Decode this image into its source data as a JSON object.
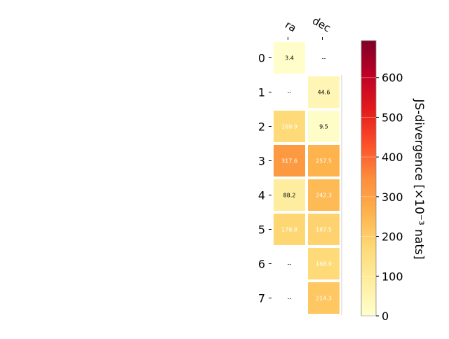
{
  "chart_data": {
    "type": "heatmap",
    "columns": [
      "ra",
      "dec"
    ],
    "rows": [
      "0",
      "1",
      "2",
      "3",
      "4",
      "5",
      "6",
      "7"
    ],
    "values": [
      [
        3.4,
        null
      ],
      [
        null,
        44.6
      ],
      [
        169.9,
        9.5
      ],
      [
        317.6,
        257.5
      ],
      [
        88.2,
        242.3
      ],
      [
        178.8,
        187.5
      ],
      [
        null,
        168.9
      ],
      [
        null,
        214.3
      ]
    ],
    "value_labels": [
      [
        "3.4",
        "--"
      ],
      [
        "--",
        "44.6"
      ],
      [
        "169.9",
        "9.5"
      ],
      [
        "317.6",
        "257.5"
      ],
      [
        "88.2",
        "242.3"
      ],
      [
        "178.8",
        "187.5"
      ],
      [
        "--",
        "168.9"
      ],
      [
        "--",
        "214.3"
      ]
    ],
    "colormap": "YlOrRd",
    "colorbar": {
      "label": "JS-divergence [×10⁻³ nats]",
      "range": [
        0,
        693
      ],
      "ticks": [
        0,
        100,
        200,
        300,
        400,
        500,
        600
      ],
      "tick_labels": [
        "0",
        "100",
        "200",
        "300",
        "400",
        "500",
        "600"
      ]
    },
    "grid": false
  }
}
